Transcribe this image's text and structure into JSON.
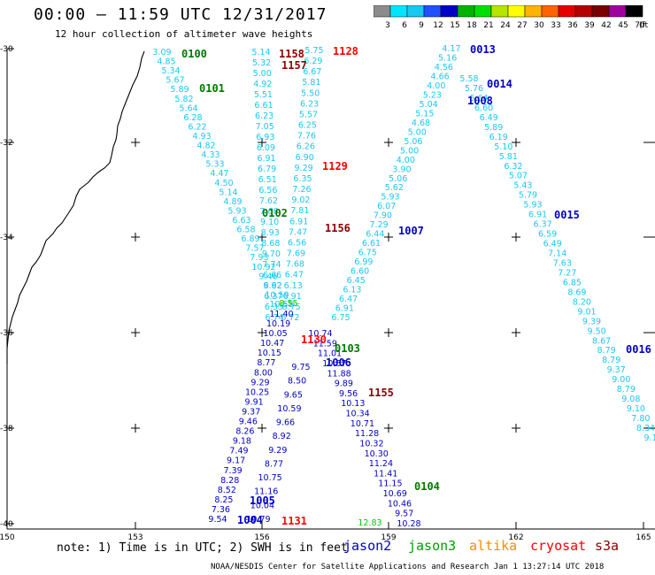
{
  "header": {
    "title": "00:00 – 11:59 UTC 12/31/2017",
    "subtitle": "12 hour collection of altimeter wave heights"
  },
  "colorbar": {
    "unit_label": "(ft)",
    "labels": [
      "3",
      "6",
      "9",
      "12",
      "15",
      "18",
      "21",
      "24",
      "27",
      "30",
      "33",
      "36",
      "39",
      "42",
      "45",
      "70"
    ],
    "colors": [
      "#8c8c8c",
      "#00e5ff",
      "#19c8f0",
      "#2050ff",
      "#0000c8",
      "#00b400",
      "#00e000",
      "#b4e600",
      "#ffff00",
      "#ffb400",
      "#ff6400",
      "#e60000",
      "#b40000",
      "#7a0000",
      "#a000a0",
      "#000000"
    ]
  },
  "map": {
    "lon_ticks": [
      "150",
      "153",
      "156",
      "159",
      "162",
      "165"
    ],
    "lat_ticks": [
      "-30",
      "-32",
      "-34",
      "-36",
      "-38",
      "-40"
    ],
    "passes": [
      {
        "id": "0100",
        "color": "#007800"
      },
      {
        "id": "0101",
        "color": "#007800"
      },
      {
        "id": "0102",
        "color": "#007800"
      },
      {
        "id": "0103",
        "color": "#007800"
      },
      {
        "id": "0104",
        "color": "#007800"
      },
      {
        "id": "1158",
        "color": "#8b0000"
      },
      {
        "id": "1157",
        "color": "#8b0000"
      },
      {
        "id": "1128",
        "color": "#ff0000"
      },
      {
        "id": "1129",
        "color": "#ff0000"
      },
      {
        "id": "1156",
        "color": "#8b0000"
      },
      {
        "id": "1130",
        "color": "#ff0000"
      },
      {
        "id": "1155",
        "color": "#8b0000"
      },
      {
        "id": "1131",
        "color": "#ff0000"
      },
      {
        "id": "0013",
        "color": "#0000c8"
      },
      {
        "id": "0014",
        "color": "#0000c8"
      },
      {
        "id": "1008",
        "color": "#0000c8"
      },
      {
        "id": "0015",
        "color": "#0000c8"
      },
      {
        "id": "1007",
        "color": "#0000c8"
      },
      {
        "id": "1006",
        "color": "#0000c8"
      },
      {
        "id": "0016",
        "color": "#0000c8"
      },
      {
        "id": "1005",
        "color": "#0000c8"
      },
      {
        "id": "1004",
        "color": "#0000c8"
      }
    ],
    "tracks": [
      {
        "name": "track-0100",
        "values": [
          "3.09",
          "4.85",
          "5.34",
          "5.67",
          "5.89",
          "5.82",
          "5.64",
          "6.28",
          "6.22",
          "4.93",
          "4.82",
          "4.33",
          "5.33",
          "4.47",
          "4.50",
          "5.14",
          "4.89",
          "5.93",
          "6.63",
          "6.58",
          "6.89",
          "7.57",
          "7.93",
          "10.92",
          "9.46",
          "9.62",
          "10.59",
          "10.58"
        ]
      },
      {
        "name": "track-1158",
        "values": [
          "5.14",
          "5.32",
          "5.00",
          "4.92",
          "5.51",
          "6.61",
          "6.23",
          "7.05",
          "6.93",
          "6.09",
          "6.91",
          "6.79",
          "6.51",
          "6.56",
          "7.62",
          "7.66",
          "9.10",
          "8.93",
          "8.68",
          "9.70",
          "7.74",
          "6.66",
          "6.92",
          "6.37",
          "6.33",
          "6.74"
        ]
      },
      {
        "name": "track-1157",
        "values": [
          "5.75",
          "6.29",
          "6.67",
          "5.81",
          "5.50",
          "6.23",
          "5.57",
          "6.25",
          "7.76",
          "6.26",
          "6.90",
          "9.29",
          "6.35",
          "7.26",
          "9.02",
          "7.81",
          "6.91",
          "7.47",
          "6.56",
          "7.69",
          "7.68",
          "6.47",
          "6.13",
          "6.91",
          "6.75",
          "6.72"
        ]
      },
      {
        "name": "track-0013",
        "values": [
          "4.17",
          "5.16",
          "4.56",
          "4.66",
          "4.00",
          "5.23",
          "5.04",
          "5.15",
          "4.68",
          "5.00",
          "5.06",
          "5.00",
          "4.00",
          "3.90",
          "5.06",
          "5.62",
          "5.93",
          "6.07",
          "7.90",
          "7.29",
          "6.44",
          "6.61",
          "6.75",
          "6.99",
          "6.60",
          "6.45",
          "6.13",
          "6.47",
          "6.91",
          "6.75"
        ]
      },
      {
        "name": "track-0014",
        "values": [
          "5.58",
          "5.76",
          "5.64",
          "6.60",
          "6.49",
          "5.89",
          "6.19",
          "5.10",
          "5.81",
          "6.32",
          "5.07",
          "5.43",
          "5.79",
          "5.93",
          "6.91",
          "6.37",
          "6.59",
          "6.49",
          "7.14",
          "7.63",
          "7.27",
          "6.85",
          "8.69",
          "8.20",
          "9.01",
          "9.39",
          "9.50",
          "8.67",
          "8.79",
          "8.79",
          "9.37",
          "9.00",
          "8.79",
          "9.08",
          "9.10",
          "7.80",
          "8.34",
          "9.1"
        ]
      },
      {
        "name": "track-1130",
        "values": [
          "11.40",
          "10.19",
          "10.05",
          "10.47",
          "10.15",
          "8.77",
          "8.00",
          "9.29",
          "10.25",
          "9.91",
          "9.37",
          "9.46",
          "8.26",
          "9.18",
          "7.49",
          "9.17",
          "7.39",
          "8.28",
          "8.52",
          "8.25",
          "7.36",
          "9.54"
        ]
      },
      {
        "name": "track-1006",
        "values": [
          "10.74",
          "11.59",
          "11.01",
          "10.67",
          "11.88",
          "9.89",
          "9.56",
          "10.13",
          "10.34",
          "10.71",
          "11.28",
          "10.32",
          "10.30",
          "11.24",
          "11.41",
          "11.15",
          "10.69",
          "10.46",
          "9.57",
          "10.28"
        ]
      },
      {
        "name": "track-1131",
        "values": [
          "9.75",
          "8.50",
          "9.65",
          "10.59",
          "9.66",
          "8.92",
          "9.29",
          "8.77",
          "10.75",
          "11.16",
          "10.04",
          "10.79"
        ]
      }
    ],
    "highlight_values": [
      "8.55",
      "12.83"
    ]
  },
  "footer": {
    "note": "note: 1) Time is in UTC; 2) SWH is in feet",
    "satellites": [
      {
        "name": "jason2",
        "color": "#0000c8"
      },
      {
        "name": "jason3",
        "color": "#00a000"
      },
      {
        "name": "altika",
        "color": "#ff8c00"
      },
      {
        "name": "cryosat",
        "color": "#ff0000"
      },
      {
        "name": "s3a",
        "color": "#8b0000"
      }
    ],
    "credit": "NOAA/NESDIS Center for Satellite Applications and Research   Jan  1 13:27:14 UTC 2018"
  }
}
